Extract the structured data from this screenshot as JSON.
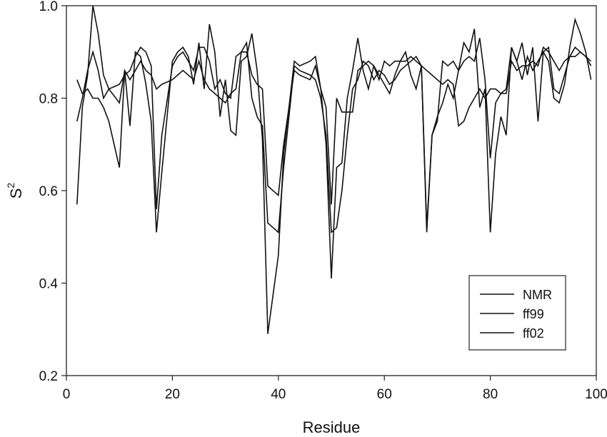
{
  "chart_data": {
    "type": "line",
    "title": "",
    "xlabel": "Residue",
    "ylabel": "S²",
    "ylabel_base": "S",
    "ylabel_sup": "2",
    "xlim": [
      0,
      100
    ],
    "ylim": [
      0.2,
      1.0
    ],
    "xticks": [
      0,
      20,
      40,
      60,
      80,
      100
    ],
    "xtick_labels": [
      "0",
      "20",
      "40",
      "60",
      "80",
      "100"
    ],
    "yticks": [
      0.2,
      0.4,
      0.6,
      0.8,
      1.0
    ],
    "ytick_labels": [
      "0.2",
      "0.4",
      "0.6",
      "0.8",
      "1.0"
    ],
    "grid": false,
    "legend_position": "lower right (inside)",
    "line_color": "#111111",
    "series": [
      {
        "name": "NMR",
        "x": [
          2,
          3,
          4,
          5,
          6,
          7,
          8,
          10,
          11,
          12,
          13,
          14,
          15,
          16,
          17,
          18,
          20,
          21,
          22,
          23,
          24,
          25,
          26,
          27,
          28,
          29,
          30,
          31,
          32,
          33,
          34,
          35,
          36,
          37,
          38,
          40,
          41,
          43,
          44,
          46,
          47,
          48,
          49,
          50,
          51,
          52,
          53,
          54,
          55,
          56,
          57,
          58,
          59,
          60,
          61,
          62,
          63,
          64,
          65,
          66,
          67,
          68,
          69,
          70,
          71,
          72,
          73,
          74,
          75,
          76,
          77,
          78,
          79,
          80,
          81,
          82,
          83,
          84,
          85,
          86,
          87,
          88,
          89,
          90,
          91,
          92,
          93,
          94,
          95,
          96,
          97,
          98,
          99
        ],
        "values": [
          0.84,
          0.81,
          0.82,
          0.8,
          0.8,
          0.78,
          0.75,
          0.65,
          0.86,
          0.84,
          0.86,
          0.88,
          0.86,
          0.85,
          0.82,
          0.83,
          0.84,
          0.85,
          0.86,
          0.85,
          0.84,
          0.88,
          0.84,
          0.82,
          0.81,
          0.8,
          0.79,
          0.81,
          0.82,
          0.9,
          0.9,
          0.85,
          0.83,
          0.82,
          0.61,
          0.59,
          0.7,
          0.86,
          0.85,
          0.84,
          0.87,
          0.82,
          0.78,
          0.57,
          0.8,
          0.77,
          0.77,
          0.77,
          0.86,
          0.87,
          0.88,
          0.87,
          0.84,
          0.88,
          0.87,
          0.88,
          0.88,
          0.88,
          0.89,
          0.88,
          0.87,
          0.86,
          0.85,
          0.84,
          0.83,
          0.84,
          0.83,
          0.74,
          0.75,
          0.78,
          0.8,
          0.82,
          0.8,
          0.82,
          0.82,
          0.81,
          0.81,
          0.88,
          0.86,
          0.87,
          0.87,
          0.88,
          0.87,
          0.91,
          0.9,
          0.88,
          0.86,
          0.88,
          0.89,
          0.89,
          0.9,
          0.89,
          0.88
        ]
      },
      {
        "name": "ff99",
        "x": [
          2,
          3,
          4,
          5,
          6,
          7,
          8,
          10,
          11,
          12,
          13,
          14,
          15,
          16,
          17,
          18,
          20,
          21,
          22,
          23,
          24,
          25,
          26,
          27,
          28,
          29,
          30,
          31,
          32,
          33,
          34,
          35,
          36,
          37,
          38,
          40,
          41,
          43,
          44,
          46,
          47,
          48,
          49,
          50,
          51,
          52,
          53,
          54,
          55,
          56,
          57,
          58,
          59,
          60,
          61,
          62,
          63,
          64,
          65,
          66,
          67,
          68,
          69,
          70,
          71,
          72,
          73,
          74,
          75,
          76,
          77,
          78,
          79,
          80,
          81,
          82,
          83,
          84,
          85,
          86,
          87,
          88,
          89,
          90,
          91,
          92,
          93,
          94,
          95,
          96,
          97,
          98,
          99
        ],
        "values": [
          0.75,
          0.8,
          0.86,
          0.9,
          0.86,
          0.8,
          0.82,
          0.83,
          0.85,
          0.86,
          0.89,
          0.91,
          0.9,
          0.87,
          0.56,
          0.72,
          0.87,
          0.89,
          0.9,
          0.88,
          0.86,
          0.91,
          0.91,
          0.88,
          0.82,
          0.84,
          0.81,
          0.8,
          0.89,
          0.9,
          0.92,
          0.8,
          0.76,
          0.74,
          0.53,
          0.51,
          0.65,
          0.87,
          0.86,
          0.85,
          0.84,
          0.8,
          0.72,
          0.51,
          0.52,
          0.6,
          0.72,
          0.82,
          0.84,
          0.88,
          0.87,
          0.84,
          0.86,
          0.85,
          0.83,
          0.84,
          0.86,
          0.87,
          0.88,
          0.89,
          0.87,
          0.52,
          0.72,
          0.75,
          0.88,
          0.87,
          0.88,
          0.86,
          0.88,
          0.89,
          0.88,
          0.93,
          0.84,
          0.67,
          0.79,
          0.81,
          0.82,
          0.91,
          0.88,
          0.84,
          0.89,
          0.86,
          0.88,
          0.9,
          0.91,
          0.82,
          0.81,
          0.85,
          0.89,
          0.91,
          0.9,
          0.89,
          0.87
        ]
      },
      {
        "name": "ff02",
        "x": [
          2,
          3,
          4,
          5,
          6,
          7,
          8,
          10,
          11,
          12,
          13,
          14,
          15,
          16,
          17,
          18,
          20,
          21,
          22,
          23,
          24,
          25,
          26,
          27,
          28,
          29,
          30,
          31,
          32,
          33,
          34,
          35,
          36,
          37,
          38,
          40,
          41,
          43,
          44,
          46,
          47,
          48,
          49,
          50,
          51,
          52,
          53,
          54,
          55,
          56,
          57,
          58,
          59,
          60,
          61,
          62,
          63,
          64,
          65,
          66,
          67,
          68,
          69,
          70,
          71,
          72,
          73,
          74,
          75,
          76,
          77,
          78,
          79,
          80,
          81,
          82,
          83,
          84,
          85,
          86,
          87,
          88,
          89,
          90,
          91,
          92,
          93,
          94,
          95,
          96,
          97,
          98,
          99
        ],
        "values": [
          0.57,
          0.78,
          0.85,
          1.0,
          0.94,
          0.85,
          0.82,
          0.79,
          0.86,
          0.74,
          0.9,
          0.89,
          0.83,
          0.75,
          0.51,
          0.64,
          0.88,
          0.9,
          0.91,
          0.89,
          0.83,
          0.92,
          0.82,
          0.96,
          0.9,
          0.76,
          0.84,
          0.73,
          0.72,
          0.88,
          0.89,
          0.94,
          0.86,
          0.71,
          0.29,
          0.46,
          0.68,
          0.88,
          0.87,
          0.88,
          0.89,
          0.82,
          0.7,
          0.41,
          0.65,
          0.66,
          0.8,
          0.86,
          0.93,
          0.86,
          0.82,
          0.87,
          0.85,
          0.83,
          0.81,
          0.85,
          0.88,
          0.9,
          0.85,
          0.82,
          0.87,
          0.51,
          0.72,
          0.76,
          0.79,
          0.83,
          0.8,
          0.86,
          0.92,
          0.9,
          0.95,
          0.78,
          0.82,
          0.51,
          0.68,
          0.76,
          0.72,
          0.91,
          0.88,
          0.92,
          0.85,
          0.91,
          0.75,
          0.9,
          0.88,
          0.8,
          0.79,
          0.83,
          0.91,
          0.97,
          0.94,
          0.9,
          0.84
        ]
      }
    ]
  }
}
